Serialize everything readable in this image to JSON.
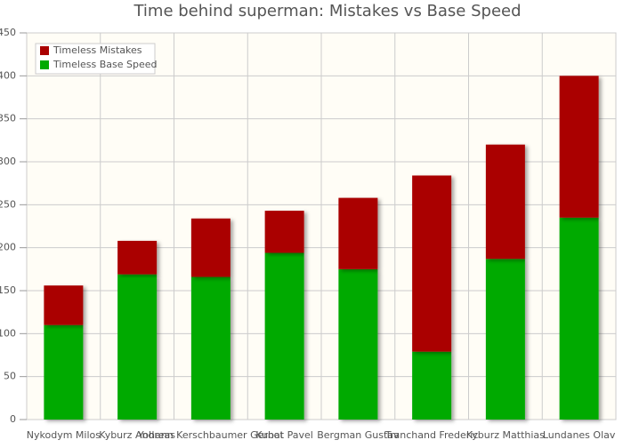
{
  "chart_data": {
    "type": "bar",
    "stacked": true,
    "title": "Time behind superman: Mistakes vs Base Speed",
    "categories": [
      "Nykodym Milos",
      "Kyburz Andreas",
      "Yohann Kerschbaumer Gernot",
      "Kubat Pavel",
      "Bergman Gustav",
      "Tranchand Frederic",
      "Kyburz Matthias",
      "Lundanes Olav"
    ],
    "series": [
      {
        "name": "Timeless Mistakes",
        "color": "#aa0000",
        "values": [
          46,
          39,
          68,
          49,
          83,
          205,
          133,
          165
        ]
      },
      {
        "name": "Timeless Base Speed",
        "color": "#00aa00",
        "values": [
          110,
          169,
          166,
          194,
          175,
          79,
          187,
          235
        ]
      }
    ],
    "stack_order": [
      1,
      0
    ],
    "ylim": [
      0,
      450
    ],
    "yticks": [
      0,
      50,
      100,
      150,
      200,
      250,
      300,
      350,
      400,
      450
    ],
    "grid": true,
    "legend": "top-left"
  }
}
